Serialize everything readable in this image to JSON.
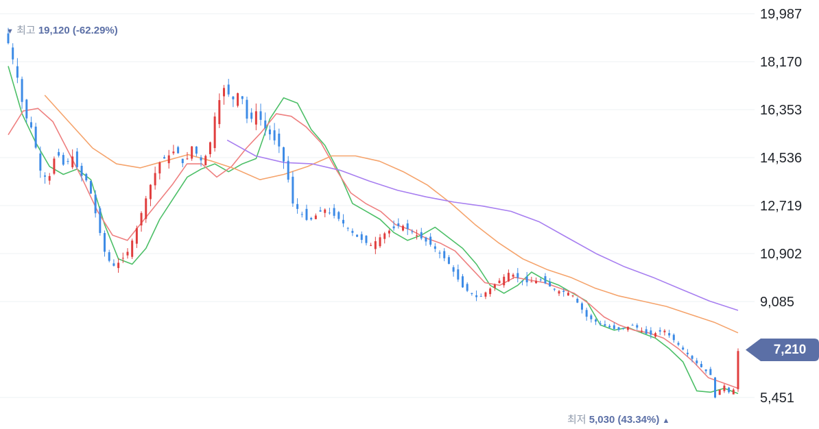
{
  "chart_data": {
    "type": "candlestick",
    "y_ticks": [
      "19,987",
      "18,170",
      "16,353",
      "14,536",
      "12,719",
      "10,902",
      "9,085",
      "5,451"
    ],
    "ylim": [
      5000,
      20300
    ],
    "grid": true,
    "current_price": "7,210",
    "annotations": {
      "high": {
        "label": "최고",
        "value": "19,120 (-62.29%)",
        "arrow": "▼"
      },
      "low": {
        "label": "최저",
        "value": "5,030 (43.34%)",
        "arrow": "▲"
      }
    },
    "anchors_first_candles": [
      18870,
      17800,
      16200,
      15600,
      14050,
      13650,
      14800,
      14200,
      14600,
      13900,
      13600,
      12300,
      11000,
      10400,
      10600,
      11000,
      11800,
      12800,
      13700,
      14400,
      14600,
      14850,
      14200,
      15000,
      14400,
      14700,
      16400,
      17200,
      16700,
      17100,
      15800,
      16300,
      15700,
      15300,
      14900,
      13700
    ],
    "anchors_mid_candles": [
      12800,
      12100,
      12600,
      12200,
      11600,
      11200,
      11700,
      12000,
      11600,
      11200,
      10600,
      9600,
      9200,
      9700,
      10200,
      9800,
      9900,
      9500,
      9400,
      8500,
      8200,
      8000,
      8200,
      7800,
      8000,
      7400,
      6800,
      6300
    ],
    "anchors_last_candles": [
      5450,
      5750,
      5900,
      5650,
      5750,
      7210
    ],
    "colors": {
      "up": "#e03e3e",
      "down": "#3d8be6",
      "ma5": "#4cbf67",
      "ma20": "#ee7f7f",
      "ma60": "#f5a36b",
      "ma120": "#a77ef0",
      "tag": "#5b6fa6"
    },
    "moving_averages": [
      {
        "color": "#4cbf67",
        "values": [
          18000,
          16200,
          15100,
          14200,
          13900,
          14100,
          13700,
          12000,
          10700,
          10500,
          11100,
          12200,
          13000,
          13800,
          14100,
          14300,
          14000,
          14300,
          14500,
          16000,
          16800,
          16600,
          15600,
          15000,
          14000,
          12800,
          12500,
          12200,
          11700,
          11400,
          11600,
          11900,
          11500,
          11100,
          10500,
          9700,
          9400,
          9700,
          10200,
          9900,
          9700,
          9400,
          9100,
          8200,
          8000,
          8100,
          7900,
          7700,
          7300,
          6800,
          5700,
          5650,
          5800,
          5600
        ]
      },
      {
        "color": "#ee7f7f",
        "values": [
          15400,
          16300,
          16400,
          15900,
          14800,
          13700,
          12500,
          11600,
          11400,
          12100,
          12800,
          13500,
          14300,
          14300,
          13800,
          14200,
          14900,
          15500,
          16200,
          16100,
          15700,
          15100,
          14100,
          13200,
          12800,
          12500,
          12000,
          11800,
          11500,
          11300,
          11000,
          10400,
          9800,
          9700,
          10000,
          9900,
          9800,
          9600,
          9400,
          9000,
          8500,
          8200,
          8000,
          7900,
          7700,
          7300,
          6800,
          6200,
          6000,
          5800
        ]
      },
      {
        "color": "#f5a36b",
        "values": [
          16900,
          15900,
          14900,
          14300,
          14150,
          14400,
          14650,
          14400,
          14100,
          13700,
          13900,
          14200,
          14600,
          14600,
          14400,
          14000,
          13500,
          12800,
          12000,
          11300,
          10700,
          10300,
          10000,
          9600,
          9300,
          9100,
          8900,
          8600,
          8300,
          7900
        ]
      },
      {
        "color": "#a77ef0",
        "values": [
          15200,
          14600,
          14350,
          14300,
          14050,
          13650,
          13300,
          13050,
          12850,
          12700,
          12500,
          12100,
          11500,
          10900,
          10400,
          10000,
          9550,
          9100,
          8750
        ]
      }
    ]
  }
}
